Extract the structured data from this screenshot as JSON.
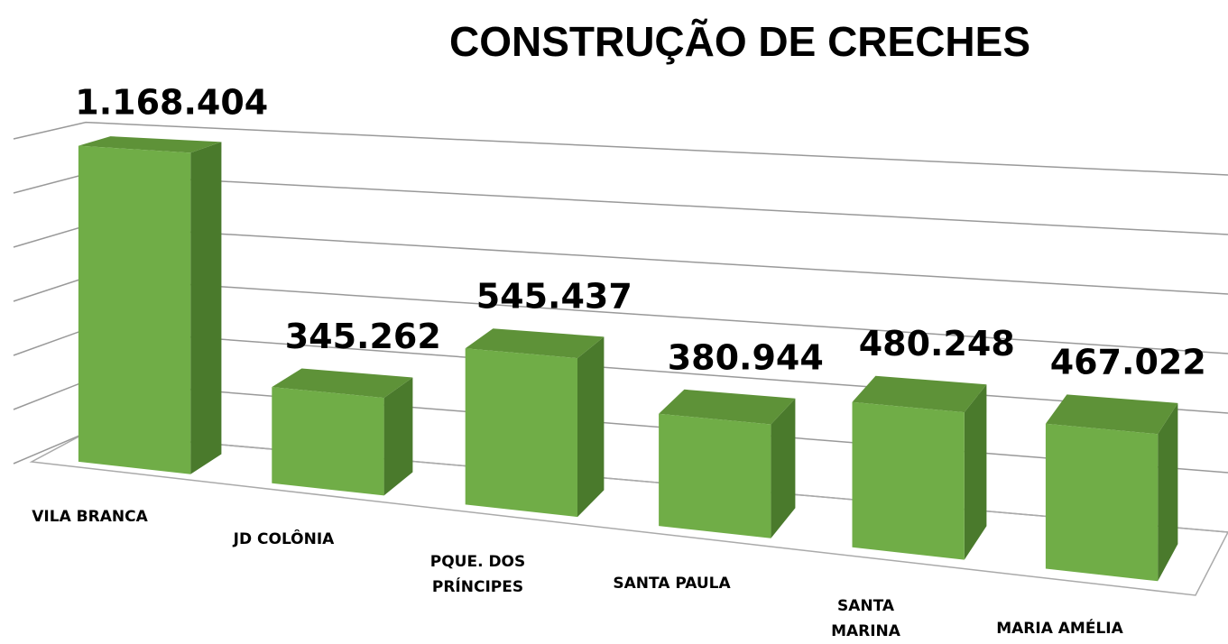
{
  "chart_data": {
    "type": "bar3d",
    "title": "CONSTRUÇÃO DE CRECHES",
    "categories": [
      "VILA BRANCA",
      "JD COLÔNIA",
      "PQUE. DOS PRÍNCIPES",
      "SANTA PAULA",
      "SANTA MARINA",
      "MARIA AMÉLIA"
    ],
    "values": [
      1168404,
      345262,
      545437,
      380944,
      480248,
      467022
    ],
    "value_labels": [
      "1.168.404",
      "345.262",
      "545.437",
      "380.944",
      "480.248",
      "467.022"
    ],
    "color": "#70ad47",
    "ylim": [
      0,
      1200000
    ],
    "yticks": [
      0,
      200000,
      400000,
      600000,
      800000,
      1000000,
      1200000
    ],
    "grid": true
  }
}
